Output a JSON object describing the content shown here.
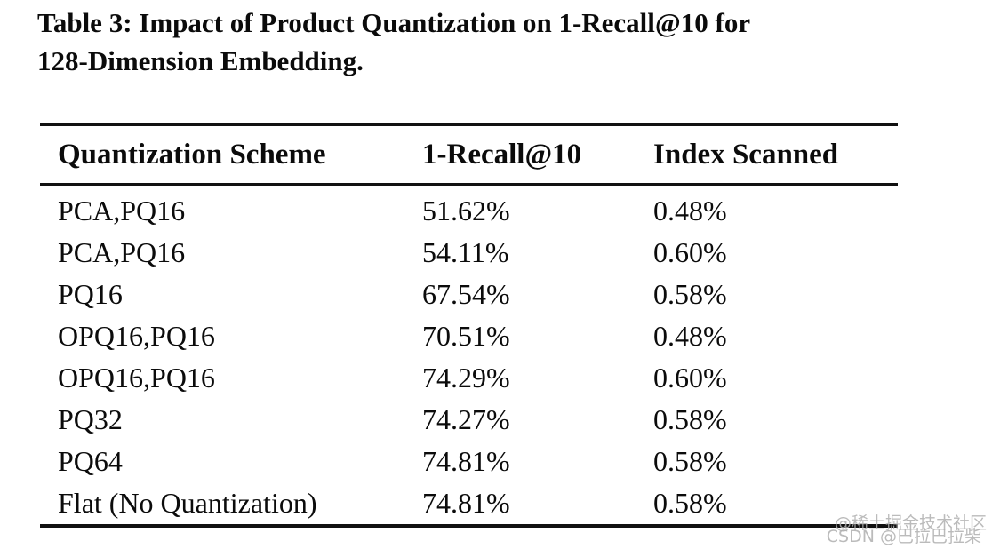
{
  "caption": {
    "line1": "Table 3: Impact of Product Quantization on 1-Recall@10 for",
    "line2": "128-Dimension Embedding."
  },
  "table": {
    "columns": [
      "Quantization Scheme",
      "1-Recall@10",
      "Index Scanned"
    ],
    "rows": [
      [
        "PCA,PQ16",
        "51.62%",
        "0.48%"
      ],
      [
        "PCA,PQ16",
        "54.11%",
        "0.60%"
      ],
      [
        "PQ16",
        "67.54%",
        "0.58%"
      ],
      [
        "OPQ16,PQ16",
        "70.51%",
        "0.48%"
      ],
      [
        "OPQ16,PQ16",
        "74.29%",
        "0.60%"
      ],
      [
        "PQ32",
        "74.27%",
        "0.58%"
      ],
      [
        "PQ64",
        "74.81%",
        "0.58%"
      ],
      [
        "Flat (No Quantization)",
        "74.81%",
        "0.58%"
      ]
    ]
  },
  "watermark": {
    "line1": "@稀土掘金技术社区",
    "line2": "CSDN @巴拉巴拉柴"
  },
  "colors": {
    "background": "#ffffff",
    "text": "#0b0b0b",
    "rule": "#111111",
    "watermark": "#b0b0b0"
  }
}
